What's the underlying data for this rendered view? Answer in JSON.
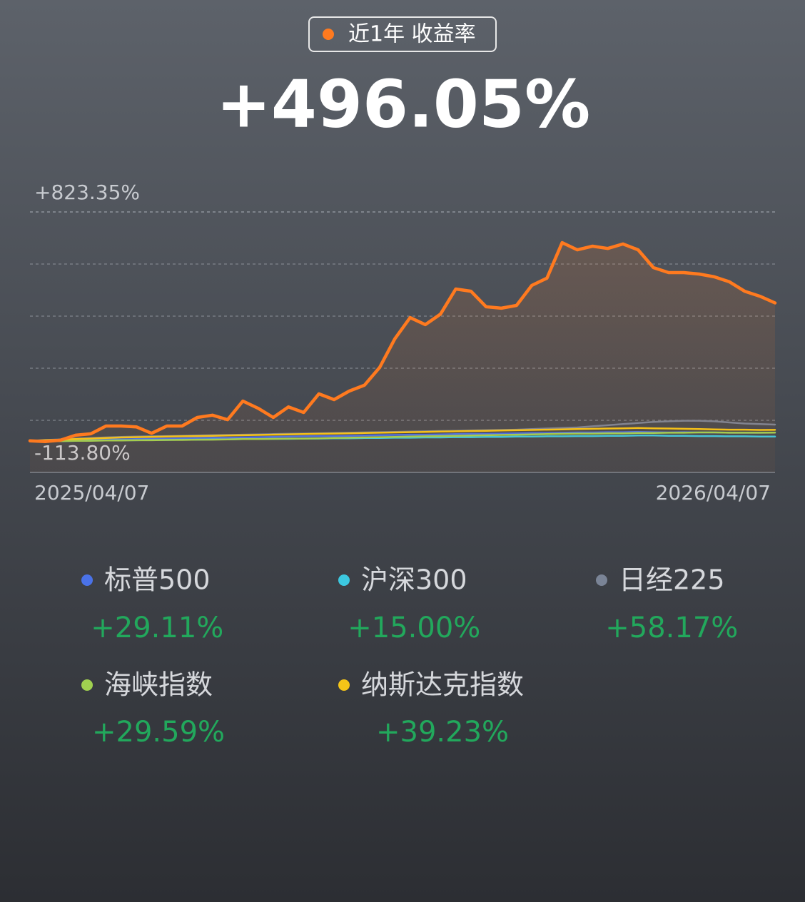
{
  "chart_data": {
    "type": "line",
    "ylim": [
      -113.8,
      823.35
    ],
    "yticks": [
      {
        "value": 823.35,
        "label": "+823.35%"
      },
      {
        "value": -113.8,
        "label": "-113.80%"
      }
    ],
    "categories": [
      "2025/04/07",
      null,
      null,
      null,
      null,
      null,
      null,
      null,
      null,
      null,
      null,
      null,
      null,
      null,
      null,
      null,
      null,
      null,
      null,
      null,
      null,
      null,
      null,
      null,
      null,
      null,
      null,
      null,
      null,
      null,
      null,
      null,
      null,
      null,
      null,
      null,
      null,
      null,
      null,
      null,
      null,
      null,
      null,
      null,
      null,
      null,
      null,
      null,
      null,
      "2026/04/07"
    ],
    "grid": true,
    "series": [
      {
        "name": "近1年 收益率",
        "color": "#ff7a1f",
        "total": 496.05,
        "total_label": "+496.05%",
        "values": [
          0,
          -3,
          2,
          20,
          25,
          53,
          53,
          50,
          27,
          53,
          53,
          84,
          92,
          76,
          143,
          117,
          84,
          122,
          102,
          169,
          148,
          179,
          200,
          264,
          367,
          443,
          418,
          456,
          546,
          538,
          482,
          477,
          487,
          559,
          585,
          713,
          687,
          700,
          692,
          708,
          687,
          623,
          605,
          605,
          600,
          590,
          572,
          538,
          520,
          496.05
        ]
      },
      {
        "name": "标普500",
        "color": "#4a72e8",
        "total": 29.11,
        "total_label": "+29.11%",
        "values": [
          0,
          1,
          2,
          3,
          4,
          5,
          5,
          6,
          7,
          8,
          9,
          10,
          11,
          11,
          12,
          13,
          14,
          15,
          16,
          17,
          17,
          18,
          19,
          20,
          21,
          22,
          22,
          23,
          24,
          25,
          25,
          26,
          27,
          28,
          28,
          29,
          30,
          30,
          31,
          31,
          32,
          31,
          30,
          31,
          30,
          30,
          29,
          29,
          29,
          29.11
        ]
      },
      {
        "name": "沪深300",
        "color": "#3cc8e0",
        "total": 15.0,
        "total_label": "+15.00%",
        "values": [
          0,
          -2,
          -1,
          0,
          1,
          1,
          2,
          2,
          3,
          3,
          4,
          4,
          5,
          5,
          6,
          6,
          7,
          7,
          8,
          8,
          9,
          9,
          10,
          10,
          11,
          11,
          12,
          12,
          13,
          13,
          14,
          14,
          15,
          15,
          16,
          16,
          17,
          17,
          18,
          18,
          19,
          19,
          18,
          18,
          17,
          17,
          16,
          16,
          15,
          15.0
        ]
      },
      {
        "name": "日经225",
        "color": "#7a8496",
        "total": 58.17,
        "total_label": "+58.17%",
        "values": [
          0,
          3,
          5,
          8,
          10,
          12,
          14,
          15,
          16,
          17,
          18,
          19,
          20,
          21,
          22,
          23,
          24,
          25,
          26,
          27,
          28,
          29,
          30,
          31,
          32,
          33,
          34,
          35,
          36,
          37,
          38,
          39,
          40,
          42,
          44,
          46,
          48,
          52,
          56,
          60,
          64,
          68,
          70,
          72,
          72,
          70,
          66,
          62,
          60,
          58.17
        ]
      },
      {
        "name": "海峡指数",
        "color": "#a0d050",
        "total": 29.59,
        "total_label": "+29.59%",
        "values": [
          0,
          -1,
          -1,
          0,
          0,
          1,
          1,
          2,
          2,
          3,
          3,
          4,
          4,
          5,
          6,
          6,
          7,
          8,
          8,
          9,
          10,
          11,
          12,
          13,
          14,
          15,
          16,
          17,
          18,
          19,
          20,
          21,
          22,
          23,
          24,
          25,
          26,
          26,
          27,
          27,
          28,
          28,
          29,
          29,
          30,
          30,
          29,
          29,
          29,
          29.59
        ]
      },
      {
        "name": "纳斯达克指数",
        "color": "#f5c518",
        "total": 39.23,
        "total_label": "+39.23%",
        "values": [
          0,
          2,
          4,
          6,
          8,
          10,
          12,
          13,
          14,
          15,
          16,
          17,
          18,
          19,
          20,
          21,
          22,
          23,
          24,
          25,
          26,
          27,
          28,
          29,
          30,
          31,
          32,
          33,
          34,
          35,
          36,
          37,
          38,
          39,
          40,
          41,
          42,
          43,
          44,
          45,
          46,
          45,
          44,
          43,
          42,
          41,
          40,
          40,
          39,
          39.23
        ]
      }
    ]
  }
}
